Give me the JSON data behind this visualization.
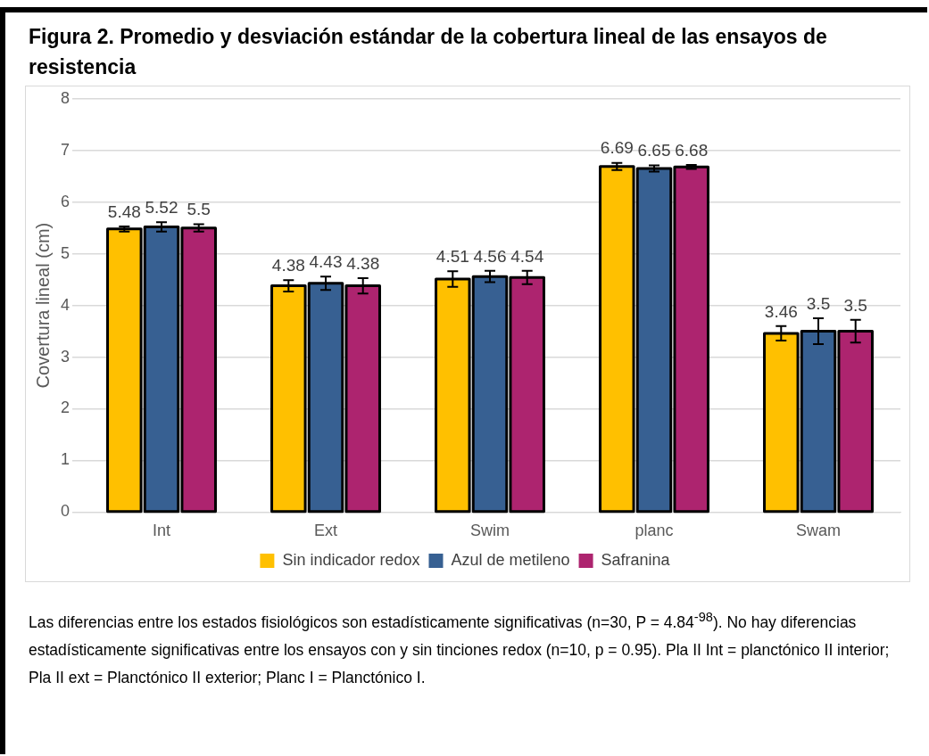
{
  "chart_data": {
    "type": "bar",
    "title": "Figura 2. Promedio y desviación estándar de la cobertura lineal de las ensayos de resistencia",
    "ylabel": "Covertura lineal (cm)",
    "categories": [
      "Int",
      "Ext",
      "Swim",
      "planc",
      "Swam"
    ],
    "series": [
      {
        "name": "Sin indicador redox",
        "color": "#ffc000",
        "values": [
          5.48,
          4.38,
          4.51,
          6.69,
          3.46
        ],
        "errors": [
          0.05,
          0.11,
          0.15,
          0.07,
          0.14
        ]
      },
      {
        "name": "Azul de metileno",
        "color": "#376092",
        "values": [
          5.52,
          4.43,
          4.56,
          6.65,
          3.5
        ],
        "errors": [
          0.09,
          0.13,
          0.11,
          0.06,
          0.25
        ]
      },
      {
        "name": "Safranina",
        "color": "#ad246f",
        "values": [
          5.5,
          4.38,
          4.54,
          6.68,
          3.5
        ],
        "errors": [
          0.07,
          0.15,
          0.13,
          0.04,
          0.22
        ]
      }
    ],
    "ylim": [
      0,
      8
    ],
    "yticks": [
      0,
      1,
      2,
      3,
      4,
      5,
      6,
      7,
      8
    ],
    "grid": "y",
    "legend": "bottom",
    "data_labels": true,
    "annotations": [
      "Las diferencias entre los estados fisiológicos son estadísticamente significativas (n=30, P = 4.84$^{-98}$). No hay diferencias estadísticamente significativas entre los ensayos con y sin tinciones redox (n=10, p = 0.95).  Pla II Int = planctónico II interior; Pla II ext = Planctónico II exterior; Planc I = Planctónico I."
    ]
  }
}
